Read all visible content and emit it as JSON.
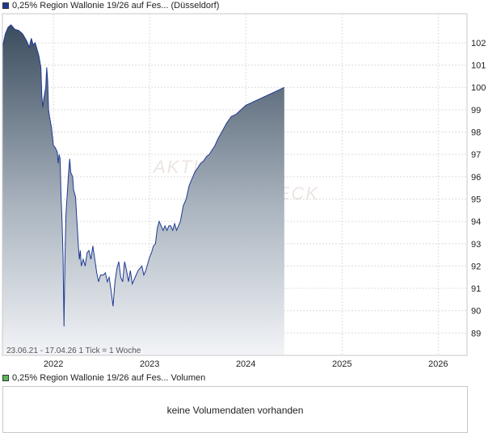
{
  "legend": {
    "price_label": "0,25% Region Wallonie 19/26 auf Fes... (Düsseldorf)",
    "price_color": "#1f3a93",
    "volume_label": "0,25% Region Wallonie 19/26 auf Fes... Volumen",
    "volume_color": "#5cb85c"
  },
  "chart_info": {
    "range_text": "23.06.21 - 17.04.26",
    "tick_text": "1 Tick = 1 Woche"
  },
  "watermark": {
    "line1": "AKTIEN",
    "line2": "CHECK"
  },
  "volume_panel": {
    "message": "keine Volumendaten vorhanden"
  },
  "chart_data": {
    "type": "area",
    "title": "",
    "xlabel": "",
    "ylabel": "",
    "xlim": [
      2021.47,
      2026.3
    ],
    "ylim": [
      88.0,
      103.3
    ],
    "x_ticks": [
      "2022",
      "2023",
      "2024",
      "2025",
      "2026"
    ],
    "y_ticks": [
      89,
      90,
      91,
      92,
      93,
      94,
      95,
      96,
      97,
      98,
      99,
      100,
      101,
      102
    ],
    "grid": true,
    "series": [
      {
        "name": "",
        "points": [
          [
            2021.47,
            101.8
          ],
          [
            2021.5,
            102.4
          ],
          [
            2021.53,
            102.7
          ],
          [
            2021.56,
            102.8
          ],
          [
            2021.6,
            102.6
          ],
          [
            2021.64,
            102.55
          ],
          [
            2021.68,
            102.4
          ],
          [
            2021.72,
            102.1
          ],
          [
            2021.75,
            101.8
          ],
          [
            2021.77,
            102.2
          ],
          [
            2021.79,
            101.9
          ],
          [
            2021.81,
            102.0
          ],
          [
            2021.83,
            101.7
          ],
          [
            2021.85,
            101.4
          ],
          [
            2021.87,
            100.9
          ],
          [
            2021.88,
            99.6
          ],
          [
            2021.89,
            99.1
          ],
          [
            2021.9,
            99.5
          ],
          [
            2021.92,
            100.0
          ],
          [
            2021.93,
            100.9
          ],
          [
            2021.94,
            100.3
          ],
          [
            2021.95,
            99.0
          ],
          [
            2021.96,
            98.7
          ],
          [
            2021.98,
            98.2
          ],
          [
            2022.0,
            97.4
          ],
          [
            2022.02,
            97.3
          ],
          [
            2022.04,
            97.1
          ],
          [
            2022.05,
            96.6
          ],
          [
            2022.06,
            97.0
          ],
          [
            2022.07,
            96.8
          ],
          [
            2022.08,
            95.1
          ],
          [
            2022.09,
            94.0
          ],
          [
            2022.1,
            92.5
          ],
          [
            2022.11,
            89.3
          ],
          [
            2022.12,
            92.3
          ],
          [
            2022.13,
            94.3
          ],
          [
            2022.14,
            95.0
          ],
          [
            2022.16,
            96.3
          ],
          [
            2022.17,
            96.8
          ],
          [
            2022.18,
            96.2
          ],
          [
            2022.2,
            96.0
          ],
          [
            2022.21,
            95.4
          ],
          [
            2022.23,
            95.1
          ],
          [
            2022.24,
            94.3
          ],
          [
            2022.25,
            93.6
          ],
          [
            2022.26,
            92.9
          ],
          [
            2022.27,
            92.3
          ],
          [
            2022.28,
            92.7
          ],
          [
            2022.29,
            92.0
          ],
          [
            2022.31,
            92.3
          ],
          [
            2022.33,
            92.0
          ],
          [
            2022.35,
            92.6
          ],
          [
            2022.37,
            92.7
          ],
          [
            2022.39,
            92.3
          ],
          [
            2022.41,
            92.9
          ],
          [
            2022.43,
            92.3
          ],
          [
            2022.45,
            91.7
          ],
          [
            2022.47,
            91.3
          ],
          [
            2022.49,
            91.6
          ],
          [
            2022.52,
            91.6
          ],
          [
            2022.54,
            91.7
          ],
          [
            2022.56,
            91.3
          ],
          [
            2022.58,
            91.5
          ],
          [
            2022.6,
            90.9
          ],
          [
            2022.62,
            90.2
          ],
          [
            2022.64,
            91.3
          ],
          [
            2022.66,
            91.9
          ],
          [
            2022.68,
            92.2
          ],
          [
            2022.7,
            91.5
          ],
          [
            2022.72,
            91.3
          ],
          [
            2022.74,
            92.2
          ],
          [
            2022.76,
            91.8
          ],
          [
            2022.78,
            91.3
          ],
          [
            2022.8,
            91.8
          ],
          [
            2022.82,
            91.2
          ],
          [
            2022.84,
            91.4
          ],
          [
            2022.86,
            91.6
          ],
          [
            2022.88,
            91.8
          ],
          [
            2022.9,
            91.9
          ],
          [
            2022.92,
            92.0
          ],
          [
            2022.94,
            91.6
          ],
          [
            2022.96,
            91.8
          ],
          [
            2022.98,
            92.1
          ],
          [
            2023.0,
            92.4
          ],
          [
            2023.02,
            92.6
          ],
          [
            2023.04,
            92.9
          ],
          [
            2023.06,
            93.0
          ],
          [
            2023.08,
            93.7
          ],
          [
            2023.1,
            94.0
          ],
          [
            2023.12,
            93.8
          ],
          [
            2023.14,
            93.6
          ],
          [
            2023.16,
            93.8
          ],
          [
            2023.18,
            93.6
          ],
          [
            2023.2,
            93.8
          ],
          [
            2023.22,
            93.8
          ],
          [
            2023.24,
            93.6
          ],
          [
            2023.26,
            93.9
          ],
          [
            2023.28,
            93.6
          ],
          [
            2023.3,
            93.8
          ],
          [
            2023.32,
            94.0
          ],
          [
            2023.35,
            94.7
          ],
          [
            2023.38,
            95.0
          ],
          [
            2023.41,
            95.6
          ],
          [
            2023.44,
            95.9
          ],
          [
            2023.47,
            96.2
          ],
          [
            2023.5,
            96.4
          ],
          [
            2023.53,
            96.6
          ],
          [
            2023.56,
            96.7
          ],
          [
            2023.59,
            96.9
          ],
          [
            2023.62,
            97.0
          ],
          [
            2023.65,
            97.2
          ],
          [
            2023.68,
            97.4
          ],
          [
            2023.71,
            97.7
          ],
          [
            2023.75,
            98.0
          ],
          [
            2023.8,
            98.4
          ],
          [
            2023.85,
            98.7
          ],
          [
            2023.9,
            98.8
          ],
          [
            2023.95,
            99.0
          ],
          [
            2024.0,
            99.2
          ],
          [
            2024.1,
            99.4
          ],
          [
            2024.2,
            99.6
          ],
          [
            2024.3,
            99.8
          ],
          [
            2024.4,
            100.0
          ]
        ]
      }
    ]
  }
}
